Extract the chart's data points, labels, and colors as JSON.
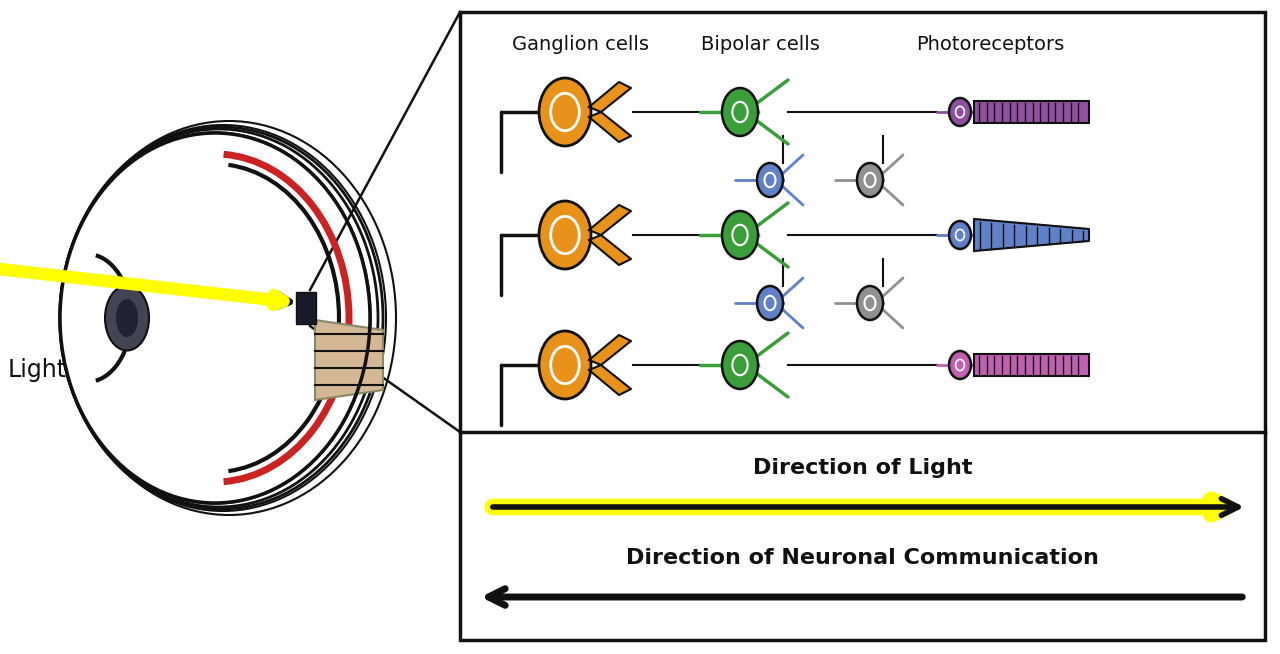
{
  "bg_color": "#ffffff",
  "label_ganglion": "Ganglion cells",
  "label_bipolar": "Bipolar cells",
  "label_photo": "Photoreceptors",
  "label_light": "Light",
  "text_dir_light": "Direction of Light",
  "text_dir_neural": "Direction of Neuronal Communication",
  "orange_color": "#E8921A",
  "green_color": "#3A9E3A",
  "blue_color": "#6080C8",
  "gray_color": "#909090",
  "purple_color": "#9050A0",
  "pink_color": "#C060B0",
  "yellow_color": "#FFFF00",
  "black_color": "#111111",
  "red_color": "#CC2222",
  "beige_color": "#D4B896"
}
